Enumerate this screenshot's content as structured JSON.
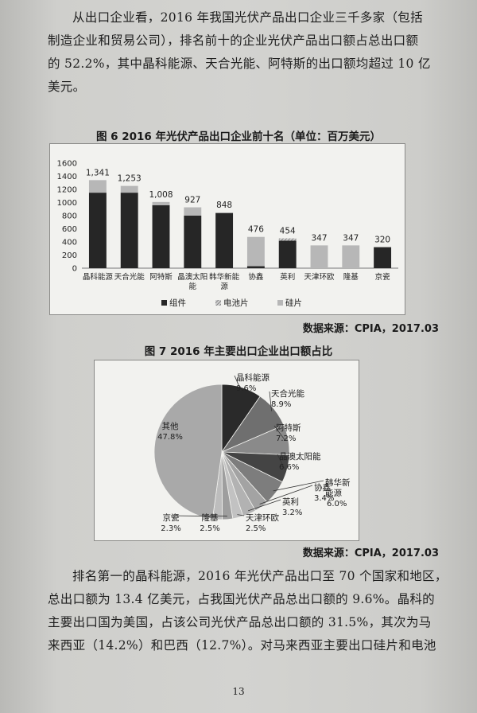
{
  "paragraph1": [
    "从出口企业看，2016 年我国光伏产品出口企业三千多家（包括",
    "制造企业和贸易公司），排名前十的企业光伏产品出口额占总出口额",
    "的 52.2%，其中晶科能源、天合光能、阿特斯的出口额均超过 10 亿",
    "美元。"
  ],
  "figure6": {
    "caption": "图 6 2016 年光伏产品出口企业前十名（单位：百万美元）",
    "source": "数据来源：CPIA，2017.03"
  },
  "figure7": {
    "caption": "图 7 2016 年主要出口企业出口额占比",
    "source": "数据来源：CPIA，2017.03"
  },
  "chart_data": [
    {
      "type": "bar",
      "stacked": true,
      "categories": [
        "晶科能源",
        "天合光能",
        "阿特斯",
        "晶澳太阳能",
        "韩华新能源",
        "协鑫",
        "英利",
        "天津环欧",
        "隆基",
        "京瓷"
      ],
      "category_labels": [
        [
          "晶科能源"
        ],
        [
          "天合光能"
        ],
        [
          "阿特斯"
        ],
        [
          "晶澳太阳",
          "能"
        ],
        [
          "韩华新能",
          "源"
        ],
        [
          "协鑫"
        ],
        [
          "英利"
        ],
        [
          "天津环欧"
        ],
        [
          "隆基"
        ],
        [
          "京瓷"
        ]
      ],
      "totals": [
        1341,
        1253,
        1008,
        927,
        848,
        476,
        454,
        347,
        347,
        320
      ],
      "total_labels": [
        "1,341",
        "1,253",
        "1,008",
        "927",
        "848",
        "476",
        "454",
        "347",
        "347",
        "320"
      ],
      "series": [
        {
          "name": "组件",
          "color": "#262626",
          "values": [
            1150,
            1150,
            960,
            800,
            840,
            30,
            420,
            0,
            0,
            320
          ]
        },
        {
          "name": "电池片",
          "color": "#9a9a9a",
          "values": [
            0,
            0,
            0,
            0,
            0,
            0,
            34,
            0,
            0,
            0
          ]
        },
        {
          "name": "硅片",
          "color": "#b7b7b7",
          "values": [
            191,
            103,
            48,
            127,
            8,
            446,
            0,
            347,
            347,
            0
          ]
        }
      ],
      "yticks": [
        0,
        200,
        400,
        600,
        800,
        1000,
        1200,
        1400,
        1600
      ],
      "ylim": [
        0,
        1600
      ],
      "legend_position": "bottom",
      "grid": false
    },
    {
      "type": "pie",
      "slices": [
        {
          "label": "晶科能源",
          "value": 9.6,
          "text": "9.6%",
          "color": "#2a2a2a"
        },
        {
          "label": "天合光能",
          "value": 8.9,
          "text": "8.9%",
          "color": "#6f6f6f"
        },
        {
          "label": "阿特斯",
          "value": 7.2,
          "text": "7.2%",
          "color": "#8a8a8a"
        },
        {
          "label": "晶澳太阳能",
          "value": 6.6,
          "text": "6.6%",
          "color": "#444444"
        },
        {
          "label": "韩华新能源",
          "value": 6.0,
          "text": "6.0%",
          "color": "#7d7d7d"
        },
        {
          "label": "协鑫",
          "value": 3.4,
          "text": "3.4%",
          "color": "#a3a3a3"
        },
        {
          "label": "英利",
          "value": 3.2,
          "text": "3.2%",
          "color": "#b2b2b2"
        },
        {
          "label": "天津环欧",
          "value": 2.5,
          "text": "2.5%",
          "color": "#c2c2c2"
        },
        {
          "label": "隆基",
          "value": 2.5,
          "text": "2.5%",
          "color": "#9e9e9e"
        },
        {
          "label": "京瓷",
          "value": 2.3,
          "text": "2.3%",
          "color": "#bdbdbd"
        },
        {
          "label": "其他",
          "value": 47.8,
          "text": "47.8%",
          "color": "#a9a9a9"
        }
      ]
    }
  ],
  "paragraph2": [
    "排名第一的晶科能源，2016 年光伏产品出口至 70 个国家和地区，",
    "总出口额为 13.4 亿美元，占我国光伏产品总出口额的 9.6%。晶科的",
    "主要出口国为美国，占该公司光伏产品总出口额的 31.5%，其次为马",
    "来西亚（14.2%）和巴西（12.7%）。对马来西亚主要出口硅片和电池"
  ],
  "page_number": "13"
}
